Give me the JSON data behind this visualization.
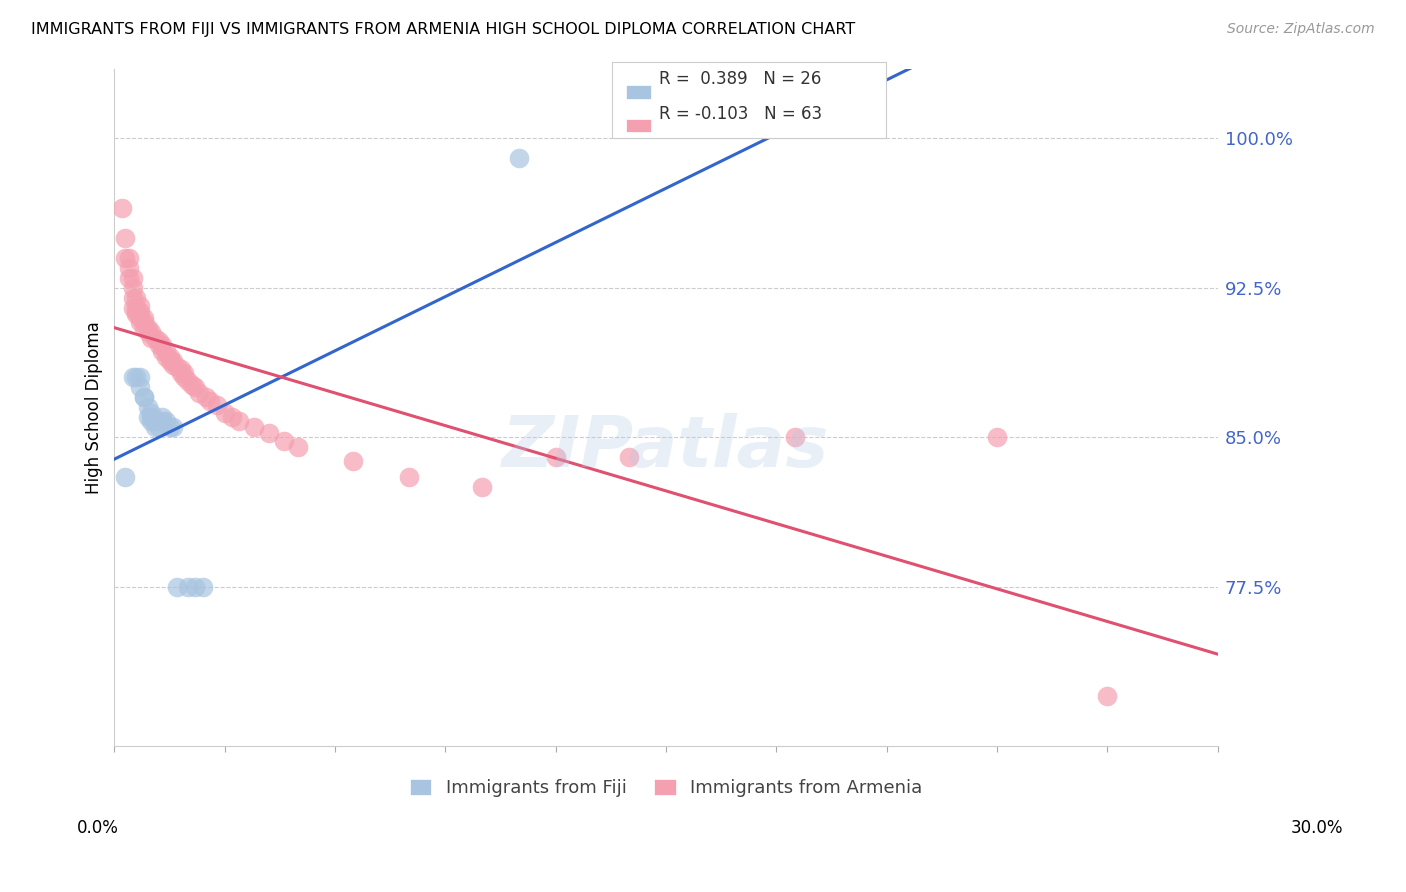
{
  "title": "IMMIGRANTS FROM FIJI VS IMMIGRANTS FROM ARMENIA HIGH SCHOOL DIPLOMA CORRELATION CHART",
  "source": "Source: ZipAtlas.com",
  "ylabel": "High School Diploma",
  "yticks": [
    "77.5%",
    "85.0%",
    "92.5%",
    "100.0%"
  ],
  "ytick_vals": [
    0.775,
    0.85,
    0.925,
    1.0
  ],
  "xlim": [
    0.0,
    0.3
  ],
  "ylim": [
    0.695,
    1.035
  ],
  "fiji_R": 0.389,
  "fiji_N": 26,
  "armenia_R": -0.103,
  "armenia_N": 63,
  "fiji_color": "#a8c4e0",
  "armenia_color": "#f4a0b0",
  "fiji_line_color": "#3366cc",
  "armenia_line_color": "#e05070",
  "watermark": "ZIPatlas",
  "fiji_x": [
    0.003,
    0.005,
    0.006,
    0.007,
    0.007,
    0.008,
    0.008,
    0.009,
    0.009,
    0.01,
    0.01,
    0.01,
    0.011,
    0.011,
    0.012,
    0.013,
    0.013,
    0.014,
    0.015,
    0.016,
    0.017,
    0.02,
    0.022,
    0.024,
    0.11,
    0.19
  ],
  "fiji_y": [
    0.83,
    0.88,
    0.88,
    0.88,
    0.875,
    0.87,
    0.87,
    0.865,
    0.86,
    0.862,
    0.86,
    0.858,
    0.858,
    0.855,
    0.855,
    0.86,
    0.858,
    0.858,
    0.855,
    0.855,
    0.775,
    0.775,
    0.775,
    0.775,
    0.99,
    1.005
  ],
  "armenia_x": [
    0.002,
    0.003,
    0.003,
    0.004,
    0.004,
    0.004,
    0.005,
    0.005,
    0.005,
    0.005,
    0.006,
    0.006,
    0.006,
    0.006,
    0.007,
    0.007,
    0.007,
    0.007,
    0.008,
    0.008,
    0.008,
    0.009,
    0.009,
    0.01,
    0.01,
    0.011,
    0.012,
    0.012,
    0.013,
    0.013,
    0.014,
    0.014,
    0.015,
    0.015,
    0.016,
    0.016,
    0.017,
    0.018,
    0.018,
    0.019,
    0.019,
    0.02,
    0.021,
    0.022,
    0.023,
    0.025,
    0.026,
    0.028,
    0.03,
    0.032,
    0.034,
    0.038,
    0.042,
    0.046,
    0.05,
    0.065,
    0.08,
    0.1,
    0.12,
    0.14,
    0.185,
    0.24,
    0.27
  ],
  "armenia_y": [
    0.965,
    0.95,
    0.94,
    0.94,
    0.935,
    0.93,
    0.93,
    0.925,
    0.92,
    0.915,
    0.92,
    0.915,
    0.913,
    0.912,
    0.916,
    0.913,
    0.91,
    0.908,
    0.91,
    0.908,
    0.905,
    0.905,
    0.903,
    0.903,
    0.9,
    0.9,
    0.898,
    0.896,
    0.896,
    0.893,
    0.893,
    0.89,
    0.89,
    0.888,
    0.888,
    0.886,
    0.885,
    0.884,
    0.882,
    0.882,
    0.88,
    0.878,
    0.876,
    0.875,
    0.872,
    0.87,
    0.868,
    0.866,
    0.862,
    0.86,
    0.858,
    0.855,
    0.852,
    0.848,
    0.845,
    0.838,
    0.83,
    0.825,
    0.84,
    0.84,
    0.85,
    0.85,
    0.72
  ]
}
